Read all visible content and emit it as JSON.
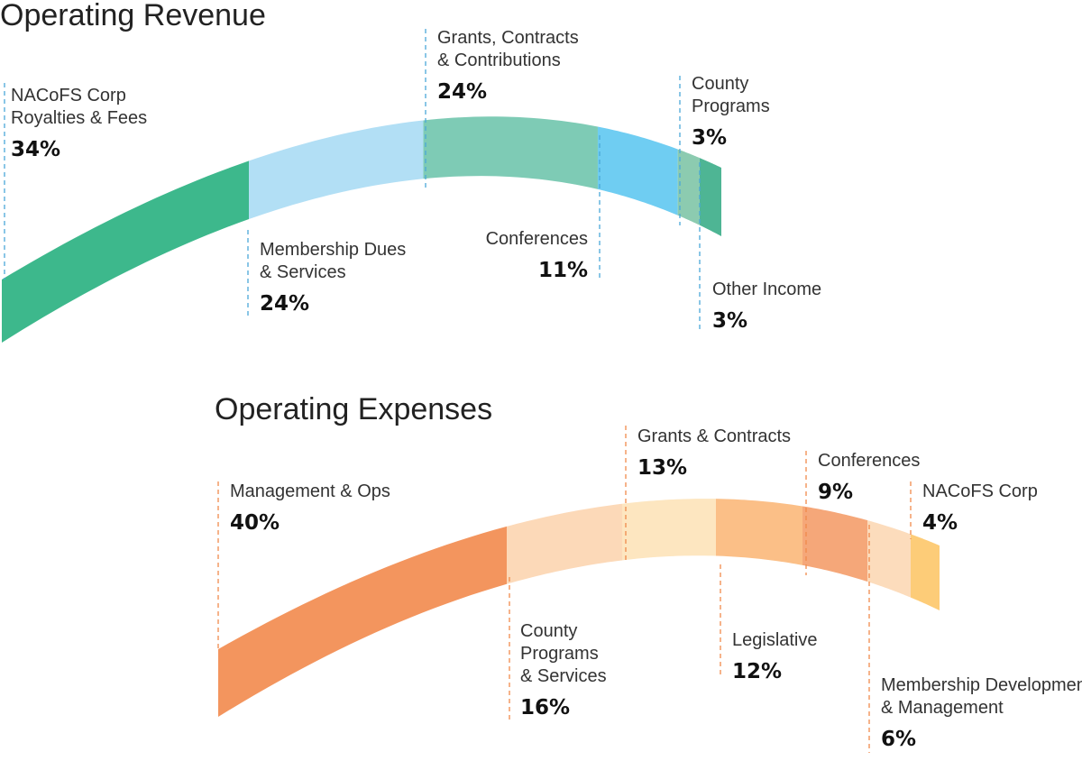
{
  "chart_data": [
    {
      "type": "arc",
      "title": "Operating Revenue",
      "segments": [
        {
          "label": [
            "NACoFS Corp",
            "Royalties & Fees"
          ],
          "value": 34,
          "display": "34%",
          "color": "#3db88c"
        },
        {
          "label": [
            "Membership Dues",
            "& Services"
          ],
          "value": 24,
          "display": "24%",
          "color": "#b2dff5"
        },
        {
          "label": [
            "Grants, Contracts",
            "& Contributions"
          ],
          "value": 24,
          "display": "24%",
          "color": "#7ecbb5"
        },
        {
          "label": [
            "Conferences"
          ],
          "value": 11,
          "display": "11%",
          "color": "#6fcdf2"
        },
        {
          "label": [
            "County",
            "Programs"
          ],
          "value": 3,
          "display": "3%",
          "color": "#8ccbb0"
        },
        {
          "label": [
            "Other Income"
          ],
          "value": 3,
          "display": "3%",
          "color": "#4eb594"
        }
      ],
      "guide_color": "#4aa8d8"
    },
    {
      "type": "arc",
      "title": "Operating Expenses",
      "segments": [
        {
          "label": [
            "Management & Ops"
          ],
          "value": 40,
          "display": "40%",
          "color": "#f3955e"
        },
        {
          "label": [
            "County",
            "Programs",
            "& Services"
          ],
          "value": 16,
          "display": "16%",
          "color": "#fcd9b8"
        },
        {
          "label": [
            "Grants & Contracts"
          ],
          "value": 13,
          "display": "13%",
          "color": "#fde6c0"
        },
        {
          "label": [
            "Legislative"
          ],
          "value": 12,
          "display": "12%",
          "color": "#fbbf87"
        },
        {
          "label": [
            "Conferences"
          ],
          "value": 9,
          "display": "9%",
          "color": "#f5a779"
        },
        {
          "label": [
            "Membership Development",
            "& Management"
          ],
          "value": 6,
          "display": "6%",
          "color": "#fcdcbc"
        },
        {
          "label": [
            "NACoFS Corp"
          ],
          "value": 4,
          "display": "4%",
          "color": "#fdcc78"
        }
      ],
      "guide_color": "#f08a4b"
    }
  ]
}
